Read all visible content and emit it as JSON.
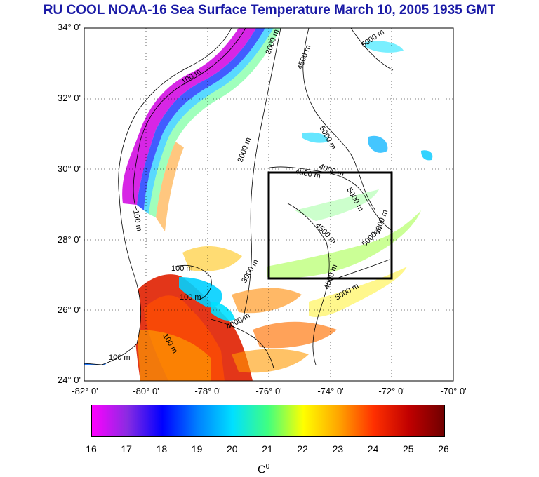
{
  "title": "RU COOL  NOAA-16 Sea Surface Temperature March 10, 2005 1935 GMT",
  "axes": {
    "lat_ticks": [
      "34° 0'",
      "32° 0'",
      "30° 0'",
      "28° 0'",
      "26° 0'",
      "24° 0'"
    ],
    "lon_ticks": [
      "-82° 0'",
      "-80° 0'",
      "-78° 0'",
      "-76° 0'",
      "-74° 0'",
      "-72° 0'",
      "-70° 0'"
    ],
    "lat_range": [
      24,
      34
    ],
    "lon_range": [
      -82,
      -70
    ]
  },
  "region_box": {
    "lon": [
      -76,
      -72
    ],
    "lat": [
      27,
      30
    ]
  },
  "contour_labels": [
    "100 m",
    "100 m",
    "100 m",
    "3000 m",
    "4500 m",
    "5000 m",
    "5000 m",
    "3000 m",
    "4000 m",
    "4500 m",
    "5000 m",
    "4500 m",
    "5000 m",
    "5000 m",
    "5000 m",
    "3000 m",
    "4500 m",
    "100 m",
    "100 m",
    "100 m",
    "4000 m"
  ],
  "colorbar": {
    "ticks": [
      "16",
      "17",
      "18",
      "19",
      "20",
      "21",
      "22",
      "23",
      "24",
      "25",
      "26"
    ],
    "unit_label": "C",
    "unit_sup": "0",
    "stops": [
      "#ff00ff",
      "#8a2be2",
      "#0000ff",
      "#0080ff",
      "#00e0ff",
      "#40ff80",
      "#ffff00",
      "#ffa500",
      "#ff3000",
      "#c00000",
      "#700000"
    ]
  },
  "colors": {
    "title": "#1a1aa6",
    "land": "#ffffff",
    "box": "#000000"
  }
}
